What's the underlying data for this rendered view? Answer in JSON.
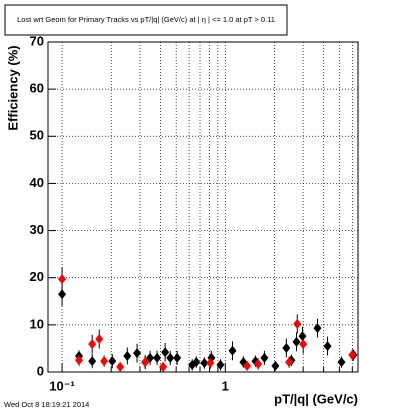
{
  "chart_data": {
    "type": "scatter",
    "title": "Lost wrt Geom for Primary Tracks vs pT/|q| (GeV/c) at | η | <= 1.0 at pT > 0.11",
    "x_label": "pT/|q| (GeV/c)",
    "y_label": "Efficiency (%)",
    "footer": "Wed Oct  8 18:19:21 2014",
    "xlog": true,
    "grid": true,
    "xlim": [
      0.082,
      6.5
    ],
    "ylim": [
      0,
      70
    ],
    "xticks": [
      {
        "value": 0.1,
        "label": "10⁻¹"
      },
      1
    ],
    "xminorticks": [
      0.2,
      0.3,
      0.4,
      0.5,
      0.6,
      0.7,
      0.8,
      0.9,
      2,
      3,
      4,
      5,
      6
    ],
    "yticks": [
      0,
      10,
      20,
      30,
      40,
      50,
      60,
      70
    ],
    "series": [
      {
        "color": "#000000",
        "marker": "diamond",
        "x": [
          0.1,
          0.127,
          0.153,
          0.203,
          0.251,
          0.288,
          0.323,
          0.346,
          0.382,
          0.428,
          0.46,
          0.507,
          0.627,
          0.664,
          0.744,
          0.822,
          0.934,
          1.107,
          1.291,
          1.53,
          1.736,
          2.027,
          2.366,
          2.541,
          2.73,
          2.97,
          3.67,
          4.23,
          5.15,
          6.1
        ],
        "values": [
          16.5,
          3.4,
          2.3,
          2.3,
          3.4,
          4.0,
          2.1,
          3.0,
          3.0,
          4.2,
          3.0,
          3.0,
          1.5,
          2.1,
          1.9,
          3.0,
          1.5,
          4.5,
          2.1,
          2.3,
          3.0,
          1.3,
          5.1,
          2.5,
          6.4,
          7.6,
          9.3,
          5.5,
          2.1,
          3.6
        ],
        "errors": [
          2.5,
          1.2,
          1.5,
          1.5,
          1.8,
          2,
          1.5,
          1.5,
          1.5,
          2,
          1.5,
          1.5,
          1.2,
          1.2,
          1.2,
          1.5,
          1.2,
          2,
          1.2,
          1.2,
          1.5,
          1,
          2,
          1.2,
          2,
          2,
          2,
          2,
          1.2,
          1.2
        ]
      },
      {
        "color": "#ff0000",
        "marker": "diamond",
        "x": [
          0.1,
          0.127,
          0.153,
          0.169,
          0.181,
          0.227,
          0.323,
          0.416,
          0.81,
          1.36,
          1.59,
          2.46,
          2.76,
          3.0,
          6.0
        ],
        "values": [
          19.7,
          2.5,
          5.9,
          7.0,
          2.3,
          1.1,
          2.1,
          1.1,
          1.9,
          1.3,
          1.7,
          2.1,
          10.2,
          5.9,
          3.6
        ],
        "errors": [
          2.5,
          1.2,
          2,
          2,
          1.2,
          1,
          1.2,
          1,
          1.2,
          1,
          1.2,
          1.2,
          2,
          2,
          1.2
        ]
      }
    ]
  }
}
